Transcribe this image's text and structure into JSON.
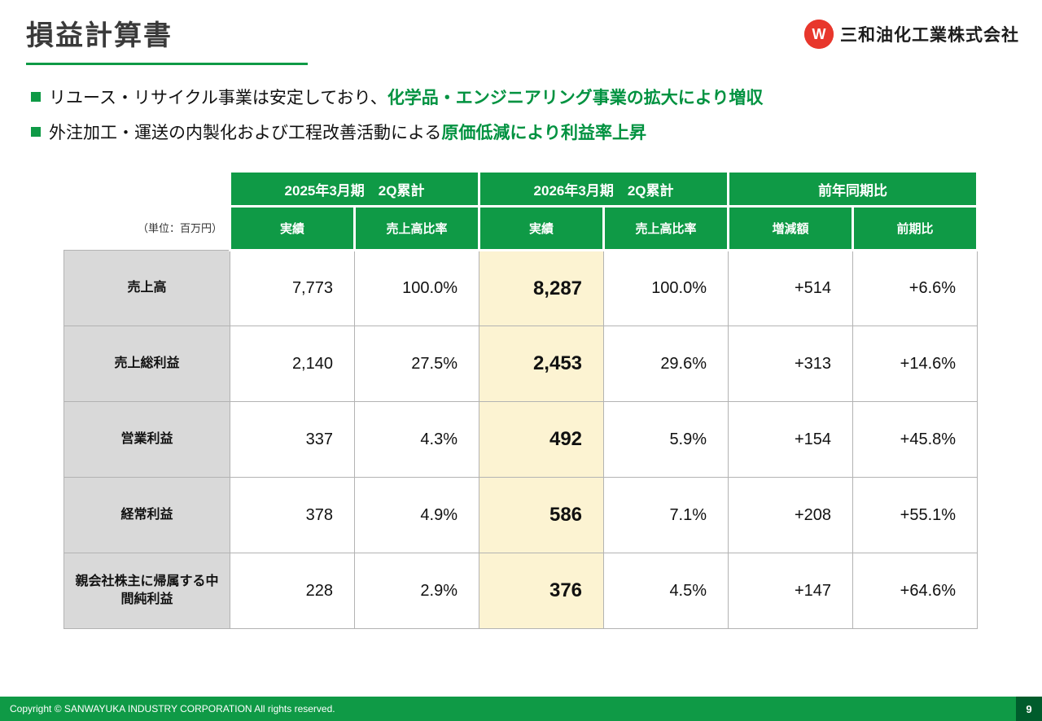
{
  "slide": {
    "title": "損益計算書",
    "logo_letter": "W",
    "logo_text": "三和油化工業株式会社",
    "bullets": [
      {
        "normal": "リユース・リサイクル事業は安定しており、",
        "highlight": "化学品・エンジニアリング事業の拡大により増収"
      },
      {
        "normal": "外注加工・運送の内製化および工程改善活動による",
        "highlight": "原価低減により利益率上昇"
      }
    ]
  },
  "table": {
    "unit_note": "（単位：百万円）",
    "col_groups": [
      "2025年3月期　2Q累計",
      "2026年3月期　2Q累計",
      "前年同期比"
    ],
    "sub_headers": [
      "実績",
      "売上高比率",
      "実績",
      "売上高比率",
      "増減額",
      "前期比"
    ],
    "rows": [
      {
        "label": "売上高",
        "values": [
          "7,773",
          "100.0%",
          "8,287",
          "100.0%",
          "+514",
          "+6.6%"
        ]
      },
      {
        "label": "売上総利益",
        "values": [
          "2,140",
          "27.5%",
          "2,453",
          "29.6%",
          "+313",
          "+14.6%"
        ]
      },
      {
        "label": "営業利益",
        "values": [
          "337",
          "4.3%",
          "492",
          "5.9%",
          "+154",
          "+45.8%"
        ]
      },
      {
        "label": "経常利益",
        "values": [
          "378",
          "4.9%",
          "586",
          "7.1%",
          "+208",
          "+55.1%"
        ]
      },
      {
        "label": "親会社株主に帰属する中間純利益",
        "values": [
          "228",
          "2.9%",
          "376",
          "4.5%",
          "+147",
          "+64.6%"
        ]
      }
    ]
  },
  "footer": {
    "copyright": "Copyright © SANWAYUKA INDUSTRY CORPORATION All rights reserved.",
    "page": "9"
  },
  "colors": {
    "brand_green": "#0f9a46",
    "accent_text_green": "#009240",
    "highlight_cell_bg": "#fcf3d2",
    "label_cell_bg": "#d9d9d9",
    "page_box_green": "#005c2c",
    "logo_red": "#e8372c"
  }
}
